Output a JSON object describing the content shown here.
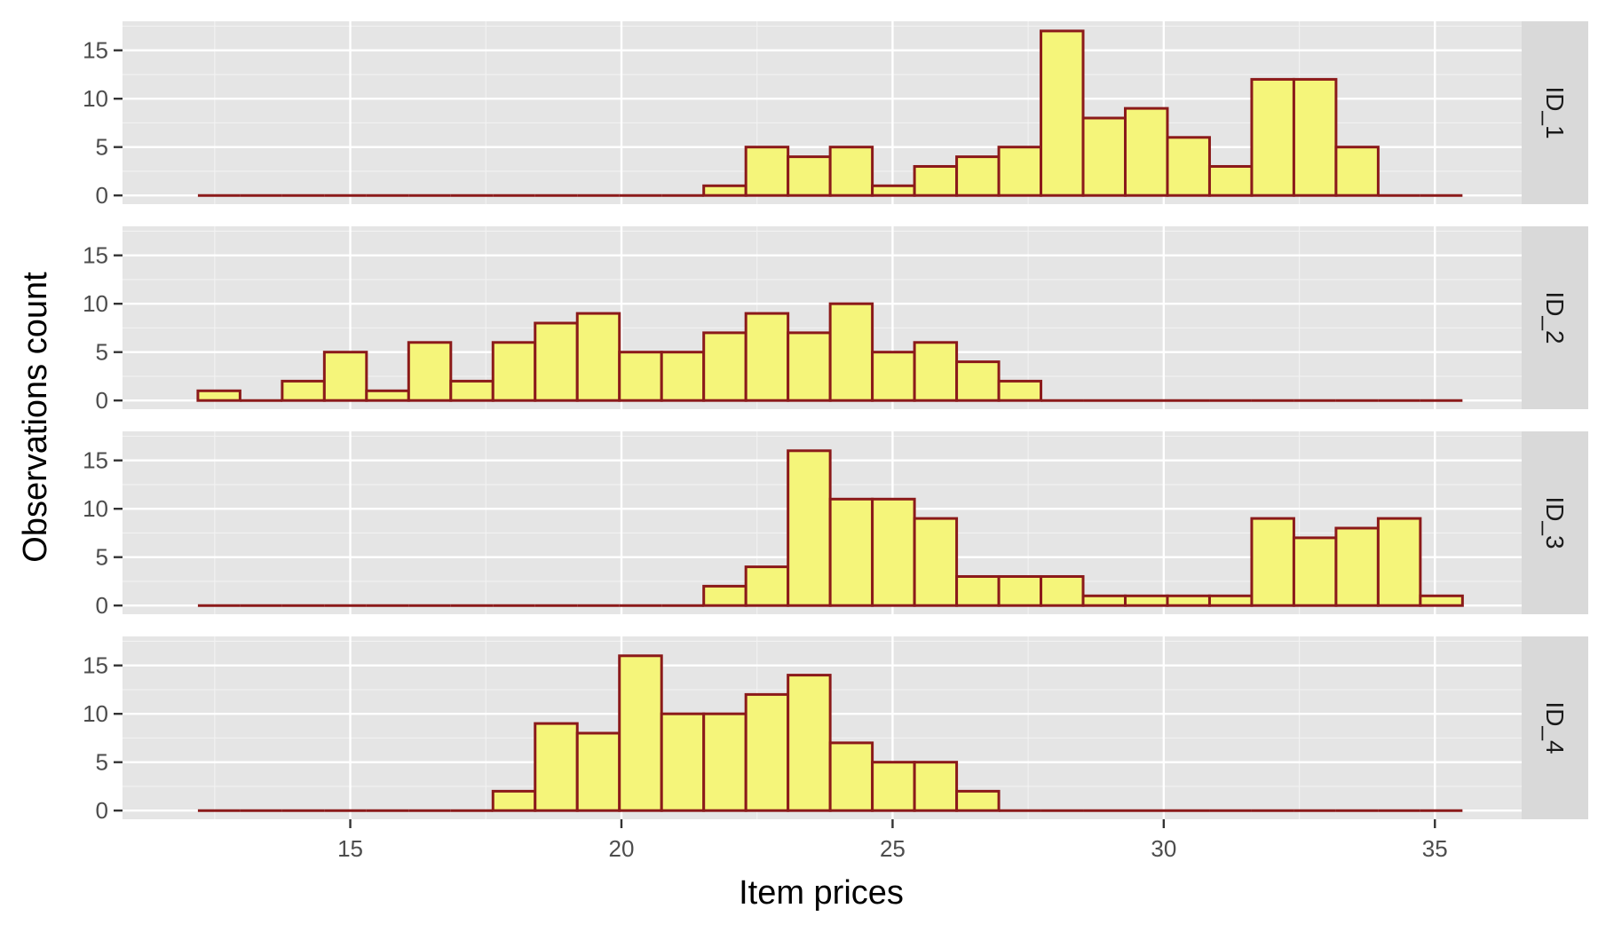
{
  "chart_data": {
    "type": "bar",
    "subtype": "faceted-histogram",
    "xlabel": "Item prices",
    "ylabel": "Observations count",
    "xlim": [
      10.8,
      36.6
    ],
    "ylim": [
      -0.9,
      18.0
    ],
    "x_ticks": [
      15,
      20,
      25,
      30,
      35
    ],
    "y_ticks": [
      0,
      5,
      10,
      15
    ],
    "bin_start": 12.19,
    "bin_width": 0.7773,
    "grid": true,
    "facet_strip_position": "right",
    "colors": {
      "panel_background": "#e5e5e5",
      "grid_major": "#ffffff",
      "grid_minor": "#f2f2f2",
      "bar_fill": "#f5f57a",
      "bar_outline": "#8b1a1a",
      "strip_background": "#d9d9d9",
      "tick_mark": "#333333"
    },
    "facets": [
      {
        "label": "ID_1",
        "counts": [
          0,
          0,
          0,
          0,
          0,
          0,
          0,
          0,
          0,
          0,
          0,
          0,
          1,
          5,
          4,
          5,
          1,
          3,
          4,
          5,
          17,
          8,
          9,
          6,
          3,
          12,
          12,
          5,
          0,
          0
        ]
      },
      {
        "label": "ID_2",
        "counts": [
          1,
          0,
          2,
          5,
          1,
          6,
          2,
          6,
          8,
          9,
          5,
          5,
          7,
          9,
          7,
          10,
          5,
          6,
          4,
          2,
          0,
          0,
          0,
          0,
          0,
          0,
          0,
          0,
          0,
          0
        ]
      },
      {
        "label": "ID_3",
        "counts": [
          0,
          0,
          0,
          0,
          0,
          0,
          0,
          0,
          0,
          0,
          0,
          0,
          2,
          4,
          16,
          11,
          11,
          9,
          3,
          3,
          3,
          1,
          1,
          1,
          1,
          9,
          7,
          8,
          9,
          1
        ]
      },
      {
        "label": "ID_4",
        "counts": [
          0,
          0,
          0,
          0,
          0,
          0,
          0,
          2,
          9,
          8,
          16,
          10,
          10,
          12,
          14,
          7,
          5,
          5,
          2,
          0,
          0,
          0,
          0,
          0,
          0,
          0,
          0,
          0,
          0,
          0
        ]
      }
    ]
  }
}
